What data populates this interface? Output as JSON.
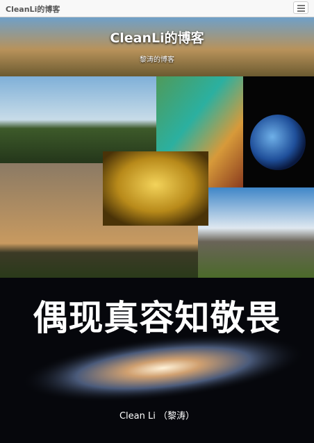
{
  "navbar": {
    "brand": "CleanLi的博客"
  },
  "header": {
    "title": "CleanLi的博客",
    "subtitle": "黎涛的博客"
  },
  "cover": {
    "title": "偶现真容知敬畏",
    "author": "Clean Li （黎涛）"
  }
}
